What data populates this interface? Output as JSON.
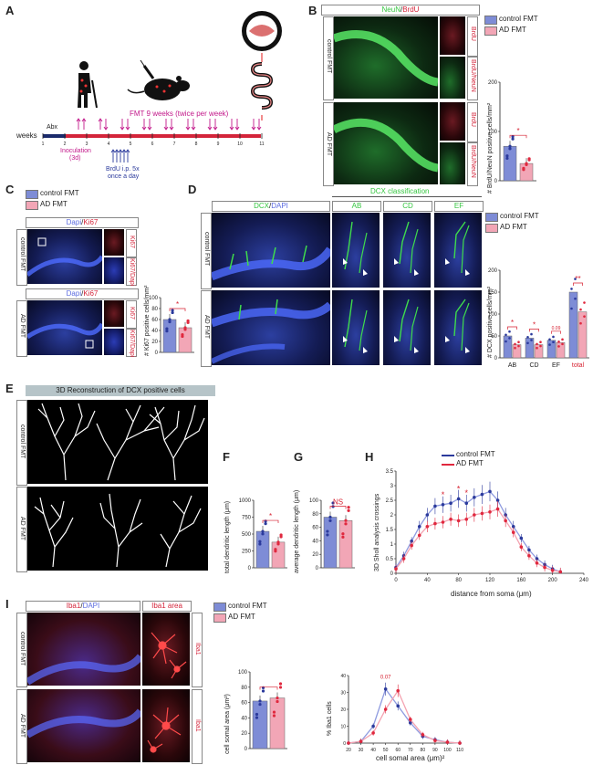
{
  "panels": [
    "A",
    "B",
    "C",
    "D",
    "E",
    "F",
    "G",
    "H",
    "I"
  ],
  "colors": {
    "control": "#7e8cd6",
    "ad": "#f2a6b6",
    "control_dark": "#2b3a9c",
    "ad_dark": "#e0283e",
    "sig": "#d61f2f",
    "green": "#35c640"
  },
  "legend": {
    "control": "control FMT",
    "ad": "AD FMT"
  },
  "groups": {
    "control": "control FMT",
    "ad": "AD FMT"
  },
  "A": {
    "fmt_label": "FMT 9 weeks (twice per week)",
    "abx": "Abx",
    "weeks_label": "weeks",
    "week_ticks": [
      "1",
      "2",
      "3",
      "4",
      "5",
      "6",
      "7",
      "8",
      "9",
      "10",
      "11"
    ],
    "inoculation": "Inoculation",
    "inoculation_days": "(3d)",
    "brdu_1": "BrdU i.p. 5x",
    "brdu_2": "once a day"
  },
  "B": {
    "title_a": "NeuN",
    "title_sep": "/",
    "title_b": "BrdU",
    "inset_labels": [
      "BrdU",
      "BrdU/NeuN"
    ],
    "ylabel": "# BrdU/NeuN positive cells/mm²",
    "yticks": [
      "0",
      "100",
      "200"
    ],
    "sig": "*",
    "values": {
      "control": 70,
      "ad": 35
    }
  },
  "C": {
    "title_a": "Dapi",
    "title_sep": "/",
    "title_b": "Ki67",
    "inset_labels": [
      "Ki67",
      "Ki67/Dapi"
    ],
    "ylabel": "# Ki67 positive cells/mm²",
    "yticks": [
      "0",
      "20",
      "40",
      "60",
      "80",
      "100"
    ],
    "sig": "*",
    "values": {
      "control": 60,
      "ad": 45
    }
  },
  "D": {
    "title_a": "DCX",
    "title_sep": "/",
    "title_b": "DAPI",
    "classification": "DCX classification",
    "classes": [
      "AB",
      "CD",
      "EF"
    ],
    "ylabel": "# DCX positive cells/mm²",
    "yticks": [
      "0",
      "50",
      "100",
      "150",
      "200"
    ],
    "categories": [
      "AB",
      "CD",
      "EF",
      "total"
    ],
    "sig": [
      "*",
      "*",
      "0.09",
      "**"
    ],
    "values": {
      "control": [
        50,
        45,
        40,
        150
      ],
      "ad": [
        30,
        30,
        35,
        105
      ]
    }
  },
  "E": {
    "title": "3D Reconstruction of DCX positive cells"
  },
  "F": {
    "ylabel": "total dendritic length (μm)",
    "yticks": [
      "0",
      "250",
      "500",
      "750",
      "1000"
    ],
    "sig": "*",
    "values": {
      "control": 540,
      "ad": 380
    }
  },
  "G": {
    "ylabel": "average dendritic length (μm)",
    "yticks": [
      "0",
      "20",
      "40",
      "60",
      "80",
      "100"
    ],
    "sig": "NS",
    "values": {
      "control": 75,
      "ad": 70
    }
  },
  "H": {
    "ylabel": "3D Sholl analysis crossings",
    "xlabel": "distance from soma (μm)",
    "xticks": [
      "0",
      "40",
      "80",
      "120",
      "160",
      "200",
      "240"
    ],
    "yticks": [
      "0",
      "0.5",
      "1",
      "1.5",
      "2",
      "2.5",
      "3",
      "3.5"
    ],
    "sig": [
      "*",
      "*",
      "*"
    ],
    "chart_data": {
      "type": "line",
      "x": [
        0,
        10,
        20,
        30,
        40,
        50,
        60,
        70,
        80,
        90,
        100,
        110,
        120,
        130,
        140,
        150,
        160,
        170,
        180,
        190,
        200,
        210
      ],
      "xlim": [
        0,
        240
      ],
      "ylim": [
        0,
        3.5
      ],
      "series": [
        {
          "name": "control FMT",
          "values": [
            0.2,
            0.6,
            1.1,
            1.6,
            2.0,
            2.3,
            2.35,
            2.4,
            2.55,
            2.4,
            2.6,
            2.7,
            2.8,
            2.5,
            2.0,
            1.6,
            1.2,
            0.8,
            0.5,
            0.3,
            0.15,
            0.05
          ]
        },
        {
          "name": "AD FMT",
          "values": [
            0.15,
            0.5,
            0.95,
            1.3,
            1.6,
            1.7,
            1.75,
            1.85,
            1.8,
            1.85,
            2.0,
            2.05,
            2.1,
            2.2,
            1.8,
            1.4,
            0.9,
            0.6,
            0.35,
            0.2,
            0.1,
            0.05
          ]
        }
      ]
    }
  },
  "I": {
    "title_a": "Iba1",
    "title_sep": "/",
    "title_b": "DAPI",
    "area_title": "Iba1 area",
    "side_label": "Iba1",
    "bar_ylabel": "cell somal area (μm²)",
    "bar_yticks": [
      "0",
      "20",
      "40",
      "60",
      "80",
      "100"
    ],
    "bar_values": {
      "control": 62,
      "ad": 66
    },
    "hist_ylabel": "% Iba1 cells",
    "hist_xlabel": "cell somal area (μm)²",
    "hist_xticks": [
      "20",
      "30",
      "40",
      "50",
      "60",
      "70",
      "80",
      "90",
      "100",
      "110"
    ],
    "hist_yticks": [
      "0",
      "10",
      "20",
      "30",
      "40"
    ],
    "hist_sig": "0.07",
    "chart_data": {
      "type": "line",
      "x": [
        20,
        30,
        40,
        50,
        60,
        70,
        80,
        90,
        100,
        110
      ],
      "xlim": [
        20,
        110
      ],
      "ylim": [
        0,
        40
      ],
      "series": [
        {
          "name": "control FMT",
          "values": [
            0,
            1,
            10,
            32,
            22,
            12,
            4,
            2,
            0.5,
            0
          ]
        },
        {
          "name": "AD FMT",
          "values": [
            0,
            1,
            6,
            20,
            31,
            14,
            5,
            1.5,
            0.5,
            0
          ]
        }
      ]
    }
  }
}
